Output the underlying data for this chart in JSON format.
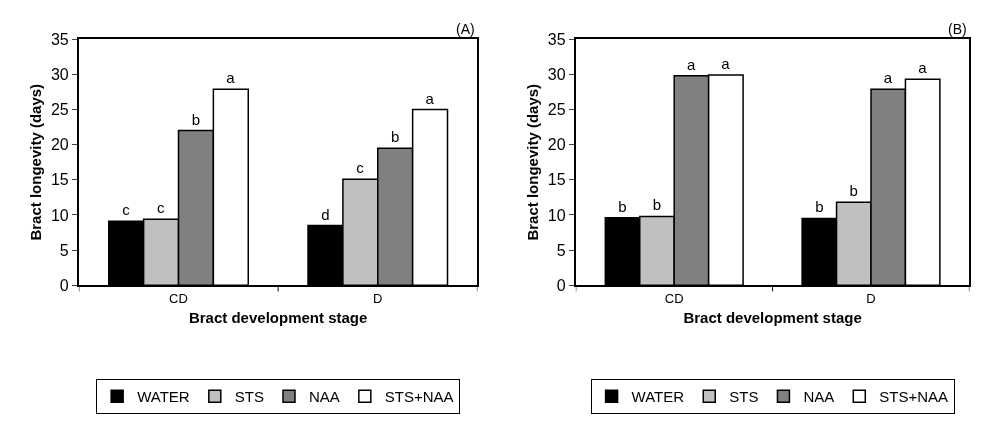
{
  "chart_data": [
    {
      "type": "bar",
      "annotations": [
        "(A)"
      ],
      "xlabel": "Bract development stage",
      "ylabel": "Bract longevity (days)",
      "categories": [
        "CD",
        "D"
      ],
      "ylim": [
        0,
        35
      ],
      "yticks": [
        0,
        5,
        10,
        15,
        20,
        25,
        30,
        35
      ],
      "legend": "bottom",
      "series": [
        {
          "name": "WATER",
          "color": "#000000",
          "values": [
            9.1,
            8.5
          ],
          "value_labels": [
            "c",
            "d"
          ]
        },
        {
          "name": "STS",
          "color": "#c0c0c0",
          "values": [
            9.4,
            15.1
          ],
          "value_labels": [
            "c",
            "c"
          ]
        },
        {
          "name": "NAA",
          "color": "#808080",
          "values": [
            22,
            19.5
          ],
          "value_labels": [
            "b",
            "b"
          ]
        },
        {
          "name": "STS+NAA",
          "color": "#ffffff",
          "values": [
            27.9,
            25
          ],
          "value_labels": [
            "a",
            "a"
          ]
        }
      ]
    },
    {
      "type": "bar",
      "annotations": [
        "(B)"
      ],
      "xlabel": "Bract development stage",
      "ylabel": "Bract longevity (days)",
      "categories": [
        "CD",
        "D"
      ],
      "ylim": [
        0,
        35
      ],
      "yticks": [
        0,
        5,
        10,
        15,
        20,
        25,
        30,
        35
      ],
      "legend": "bottom",
      "series": [
        {
          "name": "WATER",
          "color": "#000000",
          "values": [
            9.6,
            9.5
          ],
          "value_labels": [
            "b",
            "b"
          ]
        },
        {
          "name": "STS",
          "color": "#c0c0c0",
          "values": [
            9.8,
            11.8
          ],
          "value_labels": [
            "b",
            "b"
          ]
        },
        {
          "name": "NAA",
          "color": "#808080",
          "values": [
            29.8,
            27.9
          ],
          "value_labels": [
            "a",
            "a"
          ]
        },
        {
          "name": "STS+NAA",
          "color": "#ffffff",
          "values": [
            29.9,
            29.3
          ],
          "value_labels": [
            "a",
            "a"
          ]
        }
      ]
    }
  ]
}
